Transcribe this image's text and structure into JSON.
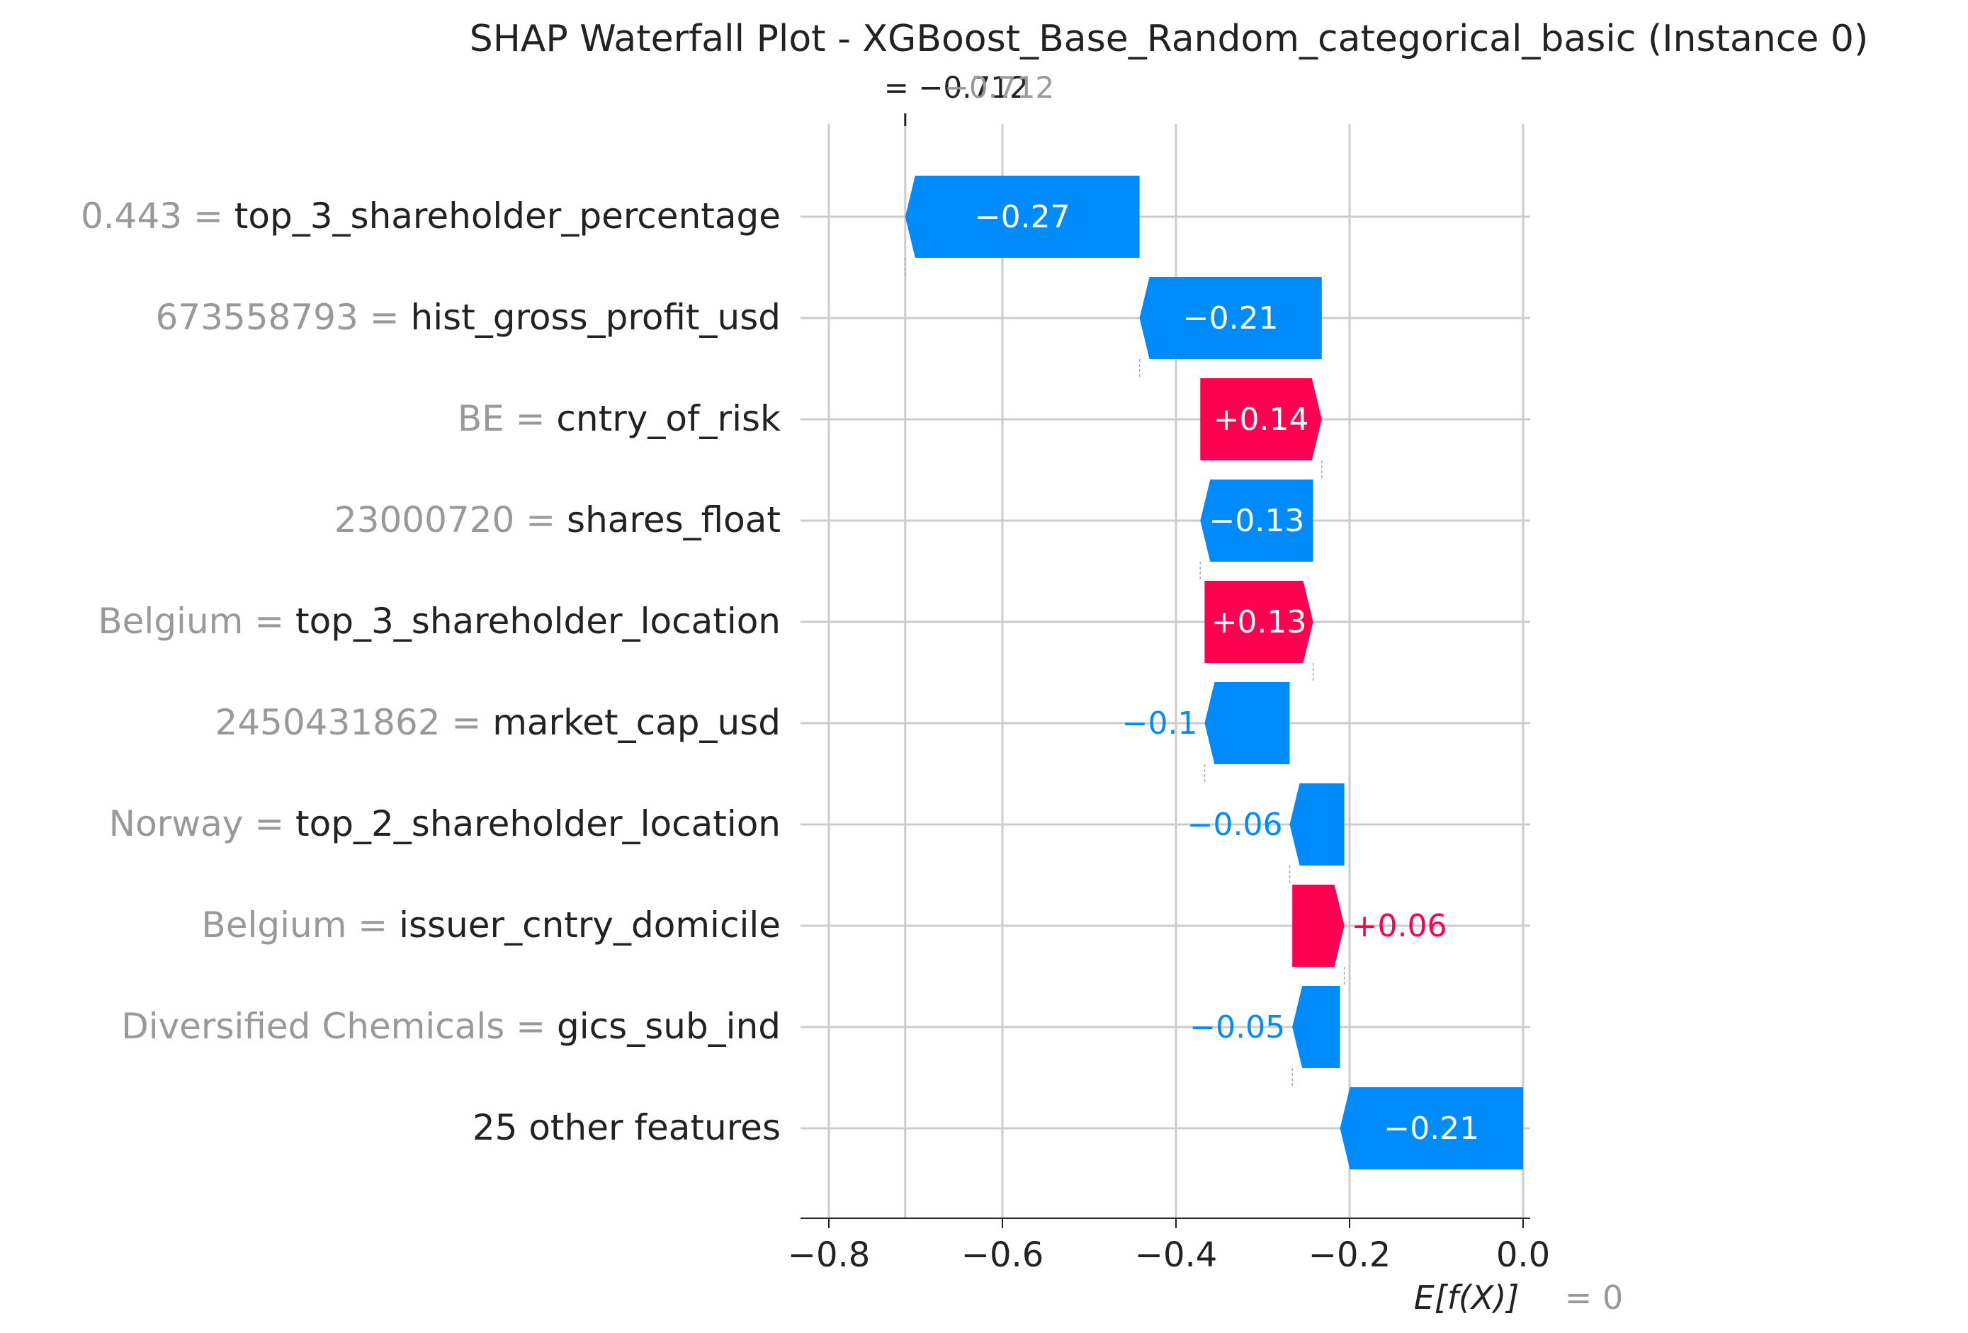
{
  "chart_data": {
    "type": "bar",
    "title": "SHAP Waterfall Plot - XGBoost_Base_Random_categorical_basic (Instance 0)",
    "fx_label": "= −0.712",
    "fx_label_overlap": "−0.712",
    "fx_value": -0.712,
    "base_value": 0,
    "base_label_prefix": "E[f(X)]",
    "base_label_value": "= 0",
    "xlim": [
      -0.83,
      0.0
    ],
    "xticks": [
      {
        "value": -0.8,
        "label": "−0.8"
      },
      {
        "value": -0.6,
        "label": "−0.6"
      },
      {
        "value": -0.4,
        "label": "−0.4"
      },
      {
        "value": -0.2,
        "label": "−0.2"
      },
      {
        "value": 0.0,
        "label": "0.0"
      }
    ],
    "colors": {
      "positive": "#ff0051",
      "negative": "#008bfb",
      "feature_value": "#999999",
      "text": "#222222",
      "grid": "#cccccc"
    },
    "features": [
      {
        "value_text": "0.443 =",
        "name": "top_3_shareholder_percentage",
        "shap": -0.27,
        "start": -0.442,
        "end": -0.712,
        "label": "−0.27"
      },
      {
        "value_text": "673558793 =",
        "name": "hist_gross_profit_usd",
        "shap": -0.21,
        "start": -0.232,
        "end": -0.442,
        "label": "−0.21"
      },
      {
        "value_text": "BE =",
        "name": "cntry_of_risk",
        "shap": 0.14,
        "start": -0.372,
        "end": -0.232,
        "label": "+0.14"
      },
      {
        "value_text": "23000720 =",
        "name": "shares_float",
        "shap": -0.13,
        "start": -0.242,
        "end": -0.372,
        "label": "−0.13"
      },
      {
        "value_text": "Belgium =",
        "name": "top_3_shareholder_location",
        "shap": 0.13,
        "start": -0.367,
        "end": -0.242,
        "label": "+0.13"
      },
      {
        "value_text": "2450431862 =",
        "name": "market_cap_usd",
        "shap": -0.1,
        "start": -0.269,
        "end": -0.367,
        "label": "−0.1"
      },
      {
        "value_text": "Norway =",
        "name": "top_2_shareholder_location",
        "shap": -0.06,
        "start": -0.206,
        "end": -0.269,
        "label": "−0.06"
      },
      {
        "value_text": "Belgium =",
        "name": "issuer_cntry_domicile",
        "shap": 0.06,
        "start": -0.266,
        "end": -0.206,
        "label": "+0.06"
      },
      {
        "value_text": "Diversified Chemicals =",
        "name": "gics_sub_ind",
        "shap": -0.05,
        "start": -0.211,
        "end": -0.266,
        "label": "−0.05"
      },
      {
        "value_text": "",
        "name": "25 other features",
        "shap": -0.21,
        "start": 0.0,
        "end": -0.211,
        "label": "−0.21"
      }
    ]
  }
}
